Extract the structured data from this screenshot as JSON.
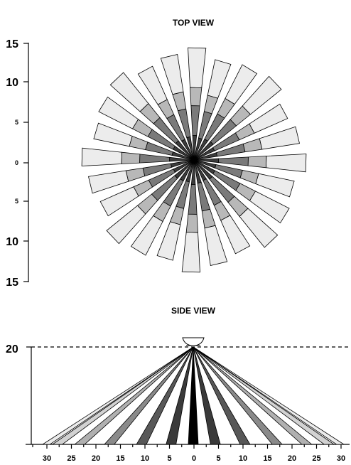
{
  "top_view": {
    "title": "TOP VIEW",
    "y_ticks": [
      {
        "label": "15",
        "value": 15,
        "size": "big"
      },
      {
        "label": "10",
        "value": 10,
        "size": "big"
      },
      {
        "label": "5",
        "value": 5,
        "size": "small"
      },
      {
        "label": "0",
        "value": 0,
        "size": "small"
      },
      {
        "label": "5",
        "value": -5,
        "size": "small"
      },
      {
        "label": "10",
        "value": -10,
        "size": "big"
      },
      {
        "label": "15",
        "value": -15,
        "size": "big"
      }
    ],
    "zone_shades": [
      "#3c3c3c",
      "#7a7a7a",
      "#b8b8b8",
      "#ececec"
    ]
  },
  "side_view": {
    "title": "SIDE VIEW",
    "height_label": "20",
    "x_ticks": [
      "30",
      "25",
      "20",
      "15",
      "10",
      "5",
      "0",
      "5",
      "10",
      "15",
      "20",
      "25",
      "30"
    ],
    "ray_fills": [
      "#000000",
      "#3a3a3a",
      "#585858",
      "#8a8a8a",
      "#b0b0b0",
      "#d2d2d2",
      "#ececec"
    ]
  }
}
